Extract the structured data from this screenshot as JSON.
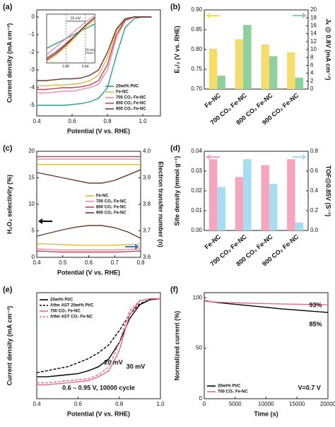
{
  "chart_data": [
    {
      "type": "line",
      "label": "(a)",
      "xlabel": "Potential (V vs. RHE)",
      "ylabel": "Current density (mA cm⁻²)",
      "xlim": [
        0.4,
        1.1
      ],
      "xticks": [
        0.4,
        0.6,
        0.8,
        {
          "value": 1.0,
          "label": "1.0"
        }
      ],
      "ylim": [
        -5.6,
        0.4
      ],
      "yticks": [
        -5,
        -4,
        -3,
        -2,
        -1,
        0
      ],
      "legend": "lower right",
      "x": [
        0.4,
        0.45,
        0.5,
        0.55,
        0.6,
        0.65,
        0.7,
        0.75,
        0.8,
        0.85,
        0.9,
        0.95,
        1.0,
        1.05
      ],
      "series": [
        {
          "name": "20wt% Pt/C",
          "color": "#2a9d8f",
          "values": [
            -5.0,
            -5.0,
            -5.0,
            -5.0,
            -4.95,
            -4.9,
            -4.8,
            -4.6,
            -4.0,
            -2.2,
            -0.6,
            -0.1,
            0,
            0
          ]
        },
        {
          "name": "Fe-NC",
          "color": "#d9bb4a",
          "values": [
            -3.9,
            -3.9,
            -3.85,
            -3.85,
            -3.8,
            -3.75,
            -3.6,
            -3.3,
            -2.3,
            -0.8,
            -0.15,
            0,
            0,
            0
          ]
        },
        {
          "name": "700 CO₂ Fe-NC",
          "color": "#e88ea8",
          "values": [
            -4.3,
            -4.3,
            -4.25,
            -4.2,
            -4.2,
            -4.1,
            -4.0,
            -3.8,
            -3.0,
            -1.2,
            -0.2,
            0,
            0,
            0
          ]
        },
        {
          "name": "800 CO₂ Fe-NC",
          "color": "#c0475a",
          "values": [
            -4.1,
            -4.1,
            -4.05,
            -4.0,
            -4.0,
            -3.95,
            -3.85,
            -3.6,
            -2.7,
            -1.0,
            -0.2,
            0,
            0,
            0
          ]
        },
        {
          "name": "900 CO₂ Fe-NC",
          "color": "#6b3a2a",
          "values": [
            -3.6,
            -3.6,
            -3.55,
            -3.5,
            -3.5,
            -3.45,
            -3.3,
            -3.0,
            -2.0,
            -0.7,
            -0.1,
            0,
            0,
            0
          ]
        }
      ],
      "inset": {
        "xlim": [
          0.76,
          0.86
        ],
        "xticks": [
          {
            "value": 0.8,
            "label": "0.80"
          },
          0.84
        ],
        "ylim": [
          -3.5,
          -0.5
        ],
        "x": [
          0.76,
          0.78,
          0.8,
          0.82,
          0.84,
          0.86
        ],
        "annotations": [
          "25 mV",
          "20 mV"
        ],
        "series": [
          {
            "values": [
              -2.6,
              -2.3,
              -2.0,
              -1.7,
              -1.4,
              -1.1
            ]
          },
          {
            "values": [
              -3.4,
              -3.0,
              -2.5,
              -1.9,
              -1.3,
              -0.8
            ]
          },
          {
            "values": [
              -3.0,
              -2.5,
              -2.0,
              -1.5,
              -1.0,
              -0.6
            ]
          },
          {
            "values": [
              -3.2,
              -2.8,
              -2.3,
              -1.8,
              -1.2,
              -0.7
            ]
          },
          {
            "values": [
              -3.3,
              -2.9,
              -2.4,
              -1.8,
              -1.2,
              -0.7
            ]
          }
        ]
      }
    },
    {
      "type": "bar",
      "label": "(b)",
      "ylabel": "E₁/₂ (V vs. RHE)",
      "y2label": "Jₖ @ 0.8V (mA cm⁻²)",
      "categories": [
        "Fe-NC",
        "700 CO₂ Fe-NC",
        "800 CO₂ Fe-NC",
        "900 CO₂ Fe-NC"
      ],
      "ylim": [
        0.7,
        0.9
      ],
      "yticks": [
        {
          "value": 0.7,
          "label": "0.70"
        },
        0.75,
        {
          "value": 0.8,
          "label": "0.80"
        },
        0.85,
        {
          "value": 0.9,
          "label": "0.90"
        }
      ],
      "y2lim": [
        0,
        20
      ],
      "y2ticks": [
        0,
        2,
        4,
        6,
        8,
        10,
        12,
        14,
        16,
        18,
        20
      ],
      "series": [
        {
          "color": "#f5dc6e",
          "values": [
            0.802,
            0.826,
            0.813,
            0.793
          ]
        },
        {
          "color": "#8fd19e",
          "axis": "y2",
          "values": [
            3.4,
            16.2,
            8.3,
            2.9
          ]
        }
      ]
    },
    {
      "type": "line",
      "label": "(c)",
      "xlabel": "Potential (V vs. RHE)",
      "ylabel": "H₂O₂ selectivity (%)",
      "y2label": "Electron transfer number (n)",
      "y2_color": "#3a7fc1",
      "xlim": [
        0.4,
        0.8
      ],
      "xticks": [
        0.4,
        0.5,
        0.6,
        0.7,
        0.8
      ],
      "ylim": [
        0,
        20
      ],
      "yticks": [
        0,
        5,
        10,
        15,
        20
      ],
      "y2lim": [
        3.6,
        4.0
      ],
      "y2ticks": [
        3.6,
        3.7,
        3.8,
        3.9,
        {
          "value": 4.0,
          "label": "4.0"
        }
      ],
      "legend": "center right",
      "x": [
        0.4,
        0.45,
        0.5,
        0.55,
        0.6,
        0.65,
        0.7,
        0.75,
        0.8
      ],
      "series": [
        {
          "name": "Fe-NC",
          "color": "#d9bb4a",
          "values": [
            2.6,
            2.5,
            2.4,
            2.3,
            2.3,
            2.3,
            2.3,
            2.4,
            2.5
          ],
          "n_values": [
            3.95,
            3.95,
            3.95,
            3.95,
            3.95,
            3.95,
            3.95,
            3.95,
            3.95
          ]
        },
        {
          "name": "700 CO₂ Fe-NC",
          "color": "#e88ea8",
          "values": [
            1.6,
            1.5,
            1.4,
            1.4,
            1.4,
            1.4,
            1.4,
            1.5,
            1.6
          ],
          "n_values": [
            3.97,
            3.97,
            3.97,
            3.97,
            3.97,
            3.97,
            3.97,
            3.97,
            3.97
          ]
        },
        {
          "name": "800 CO₂ Fe-NC",
          "color": "#c0475a",
          "values": [
            1.2,
            1.1,
            1.0,
            1.0,
            1.0,
            1.0,
            1.0,
            1.1,
            1.2
          ],
          "n_values": [
            3.98,
            3.98,
            3.98,
            3.98,
            3.98,
            3.98,
            3.98,
            3.98,
            3.98
          ]
        },
        {
          "name": "900 CO₂ Fe-NC",
          "color": "#6b3a2a",
          "values": [
            4.0,
            4.6,
            5.2,
            5.7,
            6.0,
            6.0,
            5.6,
            4.8,
            3.6
          ],
          "n_values": [
            3.92,
            3.91,
            3.9,
            3.89,
            3.88,
            3.88,
            3.89,
            3.91,
            3.93
          ]
        }
      ]
    },
    {
      "type": "bar",
      "label": "(d)",
      "ylabel": "Site density (mmol g⁻¹)",
      "y2label": "TOF@0.85V (S⁻¹)",
      "categories": [
        "Fe-NC",
        "700 CO₂ Fe-NC",
        "800 CO₂ Fe-NC",
        "900 CO₂ Fe-NC"
      ],
      "ylim": [
        0,
        0.04
      ],
      "yticks": [
        {
          "value": 0,
          "label": "0.00"
        },
        0.01,
        0.02,
        0.03,
        0.04
      ],
      "y2lim": [
        0,
        0.8
      ],
      "y2ticks": [
        {
          "value": 0,
          "label": "0.0"
        },
        0.2,
        0.4,
        0.6,
        0.8
      ],
      "series": [
        {
          "color": "#f4a6bf",
          "values": [
            0.036,
            0.027,
            0.033,
            0.036
          ]
        },
        {
          "color": "#a8dcf0",
          "axis": "y2",
          "values": [
            0.44,
            0.72,
            0.47,
            0.08
          ]
        }
      ]
    },
    {
      "type": "line",
      "label": "(e)",
      "xlabel": "Potential (V vs. RHE)",
      "ylabel": "Current density (mA cm⁻²)",
      "xlim": [
        0.4,
        1.0
      ],
      "xticks": [
        0.4,
        0.6,
        0.8,
        {
          "value": 1.0,
          "label": "1.0"
        }
      ],
      "ylim": [
        -5,
        0.3
      ],
      "legend": "upper left",
      "annotations": [
        "20 mV",
        "30 mV",
        "0.6 – 0.95 V, 10000 cycle"
      ],
      "x": [
        0.4,
        0.45,
        0.5,
        0.55,
        0.6,
        0.65,
        0.7,
        0.75,
        0.8,
        0.85,
        0.9,
        0.95,
        1.0
      ],
      "series": [
        {
          "name": "20wt% Pt/C",
          "color": "#000000",
          "values": [
            -3.9,
            -3.9,
            -3.85,
            -3.8,
            -3.75,
            -3.6,
            -3.4,
            -3.0,
            -2.2,
            -1.0,
            -0.3,
            -0.05,
            0
          ]
        },
        {
          "name": "After AST 20wt% Pt/C",
          "color": "#000000",
          "dash": true,
          "values": [
            -3.7,
            -3.6,
            -3.5,
            -3.4,
            -3.2,
            -3.0,
            -2.7,
            -2.3,
            -1.6,
            -0.8,
            -0.25,
            -0.05,
            0
          ]
        },
        {
          "name": "700 CO₂ Fe-NC",
          "color": "#e86a8a",
          "values": [
            -4.3,
            -4.3,
            -4.25,
            -4.2,
            -4.15,
            -4.1,
            -3.9,
            -3.6,
            -2.6,
            -0.8,
            -0.1,
            0,
            0
          ]
        },
        {
          "name": "After AST CO₂ Fe-NC",
          "color": "#e86a8a",
          "dash": true,
          "values": [
            -4.2,
            -4.2,
            -4.15,
            -4.1,
            -4.05,
            -4.0,
            -3.8,
            -3.4,
            -2.2,
            -0.6,
            -0.1,
            0,
            0
          ]
        }
      ]
    },
    {
      "type": "line",
      "label": "(f)",
      "xlabel": "Time (s)",
      "ylabel": "Normalized current (%)",
      "xlim": [
        0,
        20000
      ],
      "xticks": [
        0,
        5000,
        10000,
        15000,
        20000
      ],
      "ylim": [
        0,
        105
      ],
      "yticks": [
        0,
        50,
        100
      ],
      "legend": "lower left",
      "annotations": [
        "93%",
        "85%",
        "V=0.7 V"
      ],
      "x": [
        0,
        2500,
        5000,
        7500,
        10000,
        12500,
        15000,
        17500,
        20000
      ],
      "series": [
        {
          "name": "20wt% Pt/C",
          "color": "#000000",
          "values": [
            97,
            95,
            93.5,
            92,
            90.5,
            89,
            87.8,
            86.6,
            85.5
          ]
        },
        {
          "name": "700 CO₂ Fe-NC",
          "color": "#e86a8a",
          "values": [
            96.5,
            95.5,
            95,
            94.6,
            94.2,
            93.9,
            93.6,
            93.3,
            93
          ]
        }
      ]
    }
  ]
}
